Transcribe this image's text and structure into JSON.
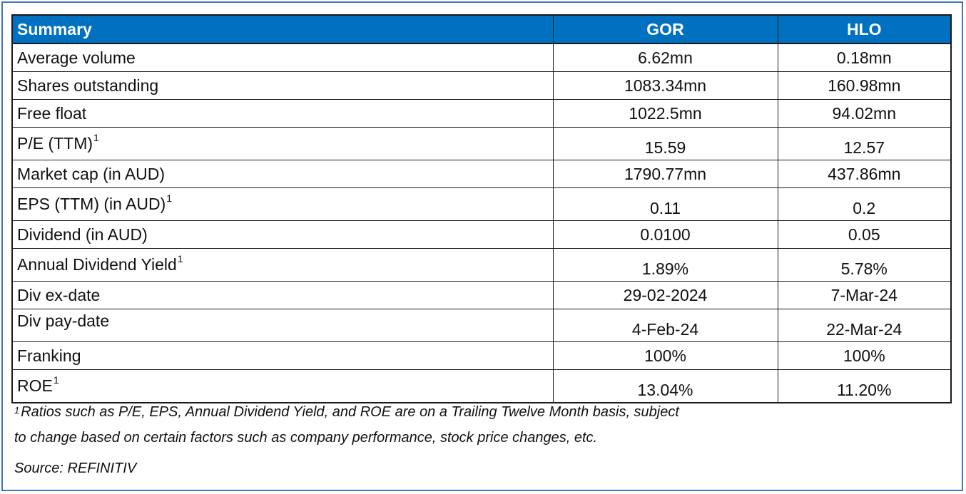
{
  "table": {
    "header": {
      "label": "Summary",
      "col1": "GOR",
      "col2": "HLO"
    },
    "rows": [
      {
        "label": "Average volume",
        "sup": "",
        "gor": "6.62mn",
        "hlo": "0.18mn"
      },
      {
        "label": "Shares outstanding",
        "sup": "",
        "gor": "1083.34mn",
        "hlo": "160.98mn"
      },
      {
        "label": "Free float",
        "sup": "",
        "gor": "1022.5mn",
        "hlo": "94.02mn"
      },
      {
        "label": "P/E (TTM)",
        "sup": "1",
        "gor": "15.59",
        "hlo": "12.57"
      },
      {
        "label": "Market cap (in AUD)",
        "sup": "",
        "gor": "1790.77mn",
        "hlo": "437.86mn"
      },
      {
        "label": "EPS (TTM) (in AUD)",
        "sup": "1",
        "gor": "0.11",
        "hlo": "0.2"
      },
      {
        "label": "Dividend (in AUD)",
        "sup": "",
        "gor": "0.0100",
        "hlo": "0.05"
      },
      {
        "label": "Annual Dividend Yield",
        "sup": "1",
        "gor": "1.89%",
        "hlo": "5.78%"
      },
      {
        "label": "Div ex-date",
        "sup": "",
        "gor": "29-02-2024",
        "hlo": "7-Mar-24"
      },
      {
        "label": "Div pay-date",
        "sup": "",
        "gor": "4-Feb-24",
        "hlo": "22-Mar-24"
      },
      {
        "label": "Franking",
        "sup": "",
        "gor": "100%",
        "hlo": "100%"
      },
      {
        "label": "ROE",
        "sup": "1",
        "gor": "13.04%",
        "hlo": "11.20%"
      }
    ]
  },
  "footnote": {
    "marker": "1",
    "line1": "Ratios such as P/E, EPS, Annual Dividend Yield, and ROE are on a Trailing Twelve Month basis, subject",
    "line2": "to change based on certain factors such as company performance, stock price changes, etc."
  },
  "source": "Source: REFINITIV",
  "colors": {
    "header_bg": "#0070c0",
    "header_text": "#ffffff",
    "frame_border": "#4472c4"
  }
}
